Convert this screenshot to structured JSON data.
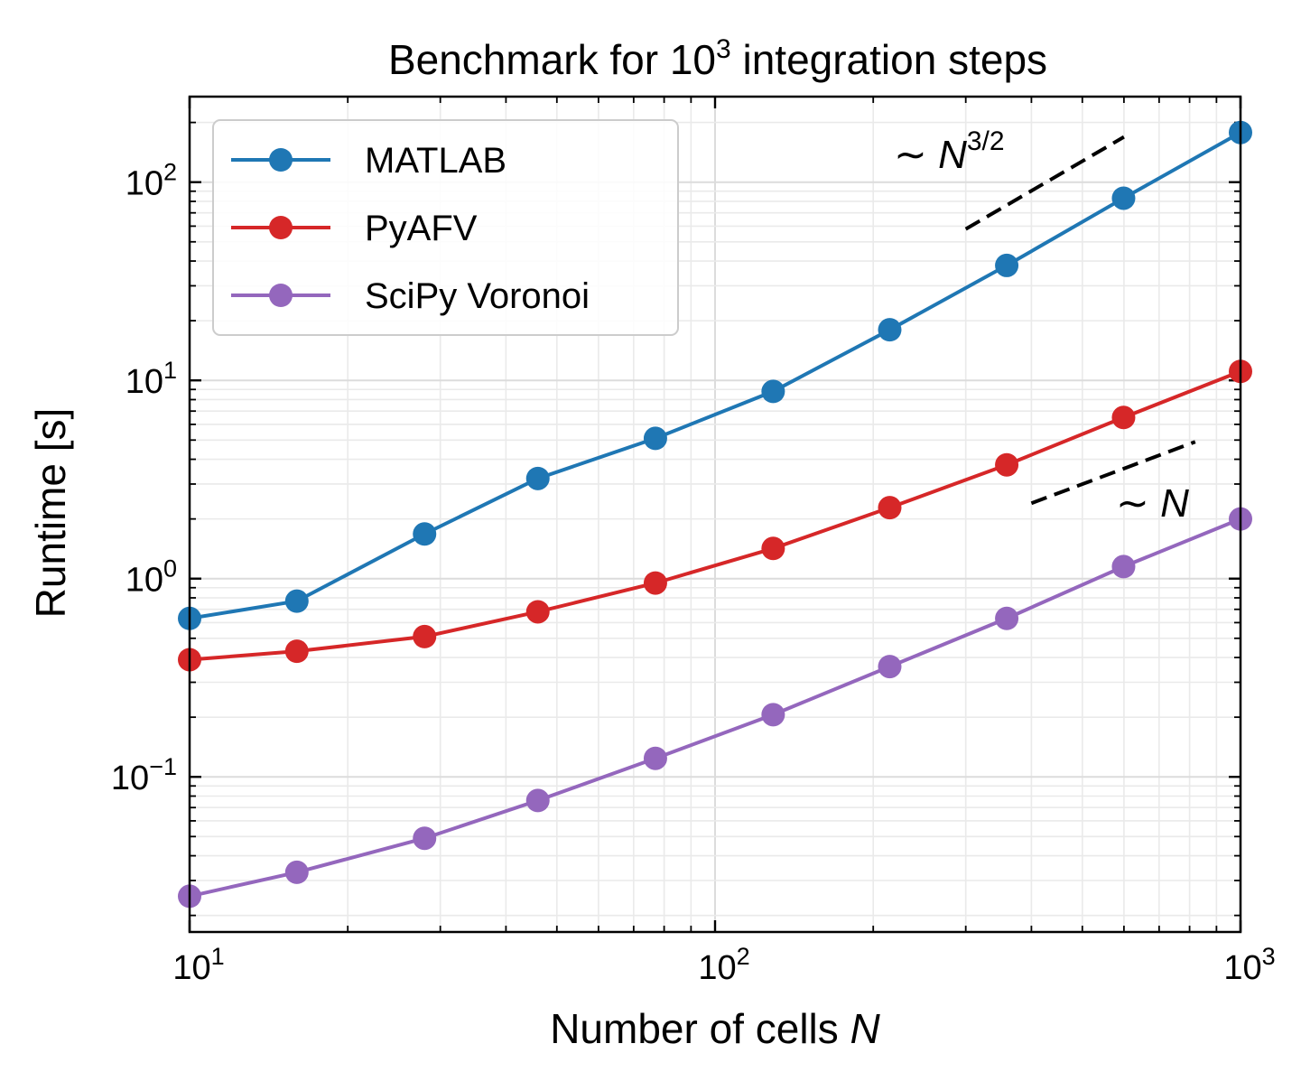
{
  "chart_data": {
    "type": "line",
    "title": "Benchmark for 10³ integration steps",
    "title_parts": {
      "before": "Benchmark for 10",
      "sup": "3",
      "after": " integration steps"
    },
    "xlabel": "Number of cells N",
    "xlabel_parts": {
      "text": "Number of cells ",
      "var": "N"
    },
    "ylabel": "Runtime [s]",
    "xscale": "log",
    "yscale": "log",
    "xlim": [
      10,
      1000
    ],
    "ylim": [
      0.0165,
      270
    ],
    "grid": true,
    "legend_position": "top-left",
    "x_ticks": [
      {
        "value": 10,
        "base": "10",
        "exp": "1"
      },
      {
        "value": 100,
        "base": "10",
        "exp": "2"
      },
      {
        "value": 1000,
        "base": "10",
        "exp": "3"
      }
    ],
    "y_ticks": [
      {
        "value": 0.1,
        "base": "10",
        "exp": "−1"
      },
      {
        "value": 1,
        "base": "10",
        "exp": "0"
      },
      {
        "value": 10,
        "base": "10",
        "exp": "1"
      },
      {
        "value": 100,
        "base": "10",
        "exp": "2"
      }
    ],
    "x": [
      10,
      16,
      28,
      46,
      77,
      129,
      215,
      359,
      599,
      1000
    ],
    "series": [
      {
        "name": "MATLAB",
        "color": "#1f77b4",
        "values": [
          0.63,
          0.77,
          1.68,
          3.2,
          5.1,
          8.8,
          18,
          38,
          83,
          178
        ]
      },
      {
        "name": "PyAFV",
        "color": "#d62728",
        "values": [
          0.39,
          0.43,
          0.51,
          0.68,
          0.95,
          1.42,
          2.28,
          3.75,
          6.5,
          11.1
        ]
      },
      {
        "name": "SciPy Voronoi",
        "color": "#9467bd",
        "values": [
          0.025,
          0.033,
          0.049,
          0.076,
          0.124,
          0.206,
          0.36,
          0.63,
          1.15,
          2.0
        ]
      }
    ],
    "annotations": [
      {
        "id": "n32",
        "prefix": "∼ ",
        "var": "N",
        "sup": "3/2",
        "line_x": [
          300,
          600
        ],
        "line_y": [
          58,
          169
        ]
      },
      {
        "id": "n1",
        "prefix": "∼ ",
        "var": "N",
        "sup": "",
        "line_x": [
          400,
          820
        ],
        "line_y": [
          2.4,
          4.9
        ]
      }
    ]
  }
}
